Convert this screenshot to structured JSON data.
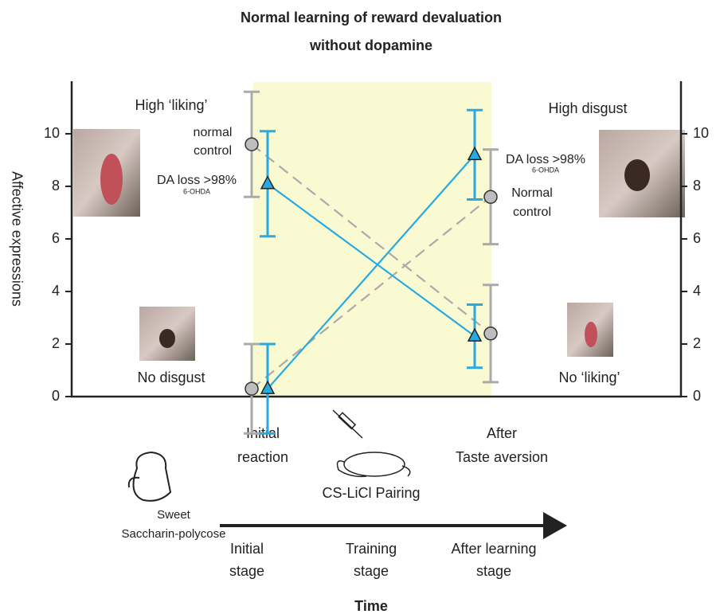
{
  "chart_data": {
    "type": "errorbar-line",
    "title": [
      "Normal learning of reward devaluation",
      "without dopamine"
    ],
    "ylabel": "Affective expressions",
    "xlabel": "Time",
    "categories": [
      [
        "Initial",
        "reaction"
      ],
      [
        "After",
        "Taste aversion"
      ]
    ],
    "ylim": [
      0,
      12
    ],
    "yticks": [
      0,
      2,
      4,
      6,
      8,
      10
    ],
    "y2lim": [
      0,
      12
    ],
    "y2ticks": [
      0,
      2,
      4,
      6,
      8,
      10
    ],
    "series": [
      {
        "color": "#aaaaaa",
        "marker": "circle",
        "dash": true,
        "values": [
          9.6,
          2.4
        ],
        "errors": [
          2.0,
          1.85
        ]
      },
      {
        "color": "#aaaaaa",
        "marker": "circle",
        "dash": true,
        "values": [
          0.3,
          7.6
        ],
        "errors": [
          1.7,
          1.8
        ]
      },
      {
        "color": "#27aae1",
        "marker": "triangle",
        "dash": false,
        "values": [
          8.1,
          2.3
        ],
        "errors": [
          2.0,
          1.2
        ]
      },
      {
        "color": "#27aae1",
        "marker": "triangle",
        "dash": false,
        "values": [
          0.3,
          9.2
        ],
        "errors": [
          1.7,
          1.7
        ]
      }
    ],
    "shaded_color": "#fafad2",
    "annotations": [
      "High ‘liking’",
      "normal",
      "control",
      "DA loss >98%",
      "6-OHDA",
      "High disgust",
      "DA loss >98%",
      "6-OHDA",
      "Normal",
      "control",
      "No disgust",
      "No ‘liking’"
    ],
    "training_label": "CS-LiCl Pairing",
    "stimulus": [
      "Sweet",
      "Saccharin-polycose"
    ],
    "stages": [
      [
        "Initial",
        "stage"
      ],
      [
        "Training",
        "stage"
      ],
      [
        "After learning",
        "stage"
      ]
    ]
  }
}
